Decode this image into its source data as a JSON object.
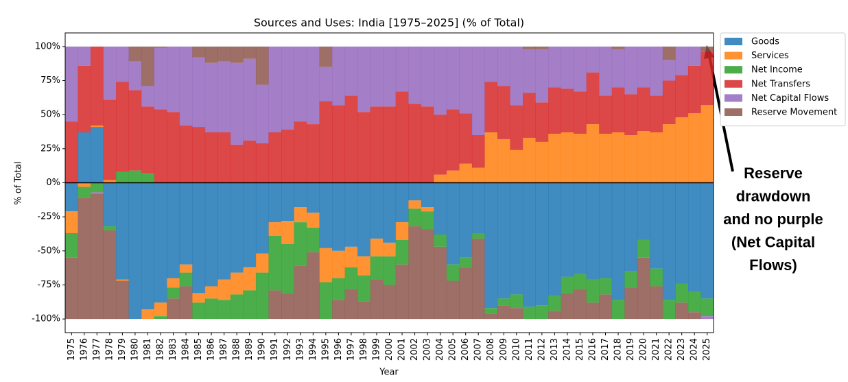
{
  "chart_data": {
    "type": "stacked_step",
    "title": "Sources and Uses: India [1975–2025] (% of Total)",
    "x_label": "Year",
    "y_label": "% of Total",
    "categories": [
      "1975",
      "1976",
      "1977",
      "1978",
      "1979",
      "1980",
      "1981",
      "1982",
      "1983",
      "1984",
      "1985",
      "1986",
      "1987",
      "1988",
      "1989",
      "1990",
      "1991",
      "1992",
      "1993",
      "1994",
      "1995",
      "1996",
      "1997",
      "1998",
      "1999",
      "2000",
      "2001",
      "2002",
      "2003",
      "2004",
      "2005",
      "2006",
      "2007",
      "2008",
      "2009",
      "2010",
      "2011",
      "2012",
      "2013",
      "2014",
      "2015",
      "2016",
      "2017",
      "2018",
      "2019",
      "2020",
      "2021",
      "2022",
      "2023",
      "2024",
      "2025"
    ],
    "series": [
      {
        "name": "Goods",
        "color": "#1f77b4",
        "values": [
          -21,
          37,
          41,
          -32,
          -71,
          -100,
          -93,
          -88,
          -70,
          -60,
          -81,
          -76,
          -71,
          -66,
          -62,
          -52,
          -29,
          -28,
          -18,
          -22,
          -48,
          -50,
          -47,
          -54,
          -41,
          -44,
          -29,
          -13,
          -18,
          -38,
          -60,
          -55,
          -37,
          -92,
          -85,
          -82,
          -91,
          -90,
          -83,
          -69,
          -67,
          -71,
          -70,
          -86,
          -65,
          -42,
          -63,
          -86,
          -74,
          -80,
          -85
        ]
      },
      {
        "name": "Services",
        "color": "#ff7f0e",
        "values": [
          -16,
          -3,
          1,
          2,
          -1,
          0,
          -7,
          -10,
          -7,
          -6,
          -7,
          -9,
          -15,
          -16,
          -17,
          -14,
          -10,
          -17,
          -11,
          -11,
          -25,
          -20,
          -15,
          -14,
          -13,
          -10,
          -13,
          -6,
          -3,
          6,
          9,
          14,
          11,
          37,
          32,
          24,
          33,
          30,
          36,
          37,
          36,
          43,
          36,
          37,
          35,
          38,
          37,
          43,
          48,
          51,
          57
        ]
      },
      {
        "name": "Net Income",
        "color": "#2ca02c",
        "values": [
          -18,
          -8,
          -7,
          -3,
          8,
          9,
          7,
          -2,
          -8,
          -10,
          -12,
          -15,
          -14,
          -18,
          -21,
          -34,
          -40,
          -36,
          -32,
          -18,
          -27,
          -16,
          -16,
          -19,
          -17,
          -21,
          -18,
          -13,
          -13,
          -9,
          -12,
          -7,
          -4,
          -4,
          -5,
          -10,
          -9,
          -10,
          -11,
          -12,
          -11,
          -17,
          -12,
          -14,
          -12,
          -13,
          -13,
          -14,
          -14,
          -15,
          -13
        ]
      },
      {
        "name": "Net Transfers",
        "color": "#d62728",
        "values": [
          45,
          49,
          58,
          59,
          66,
          59,
          49,
          54,
          52,
          42,
          41,
          37,
          37,
          28,
          31,
          29,
          37,
          39,
          45,
          43,
          60,
          57,
          64,
          52,
          56,
          56,
          67,
          58,
          56,
          44,
          45,
          37,
          24,
          37,
          39,
          33,
          33,
          29,
          34,
          32,
          31,
          38,
          28,
          33,
          30,
          32,
          27,
          32,
          31,
          35,
          39
        ]
      },
      {
        "name": "Net Capital Flows",
        "color": "#9467bd",
        "values": [
          55,
          14,
          -1,
          39,
          26,
          21,
          15,
          45,
          48,
          58,
          51,
          51,
          52,
          60,
          60,
          43,
          63,
          61,
          55,
          57,
          25,
          43,
          36,
          48,
          44,
          44,
          33,
          42,
          44,
          50,
          46,
          49,
          65,
          26,
          29,
          43,
          32,
          39,
          30,
          31,
          33,
          19,
          36,
          28,
          35,
          30,
          36,
          15,
          21,
          14,
          -2
        ]
      },
      {
        "name": "Reserve Movement",
        "color": "#8c564b",
        "values": [
          -45,
          -89,
          -92,
          -65,
          -28,
          11,
          29,
          1,
          -15,
          -24,
          8,
          12,
          11,
          12,
          9,
          28,
          -21,
          -19,
          -39,
          -49,
          15,
          -14,
          -22,
          -13,
          -29,
          -25,
          -40,
          -68,
          -66,
          -53,
          -28,
          -38,
          -59,
          -4,
          -10,
          -8,
          2,
          2,
          -6,
          -19,
          -22,
          -12,
          -18,
          2,
          -23,
          -45,
          -24,
          10,
          -12,
          -5,
          4
        ]
      }
    ],
    "alpha": 0.85,
    "ylim": [
      -110,
      110
    ],
    "yticks": [
      {
        "value": -100,
        "label": "-100%"
      },
      {
        "value": -75,
        "label": "-75%"
      },
      {
        "value": -50,
        "label": "-50%"
      },
      {
        "value": -25,
        "label": "-25%"
      },
      {
        "value": 0,
        "label": "0%"
      },
      {
        "value": 25,
        "label": "25%"
      },
      {
        "value": 50,
        "label": "50%"
      },
      {
        "value": 75,
        "label": "75%"
      },
      {
        "value": 100,
        "label": "100%"
      }
    ],
    "legend": "outside upper right",
    "annotation": [
      "Reserve",
      "drawdown",
      "and no purple",
      "(Net Capital",
      "Flows)"
    ]
  }
}
